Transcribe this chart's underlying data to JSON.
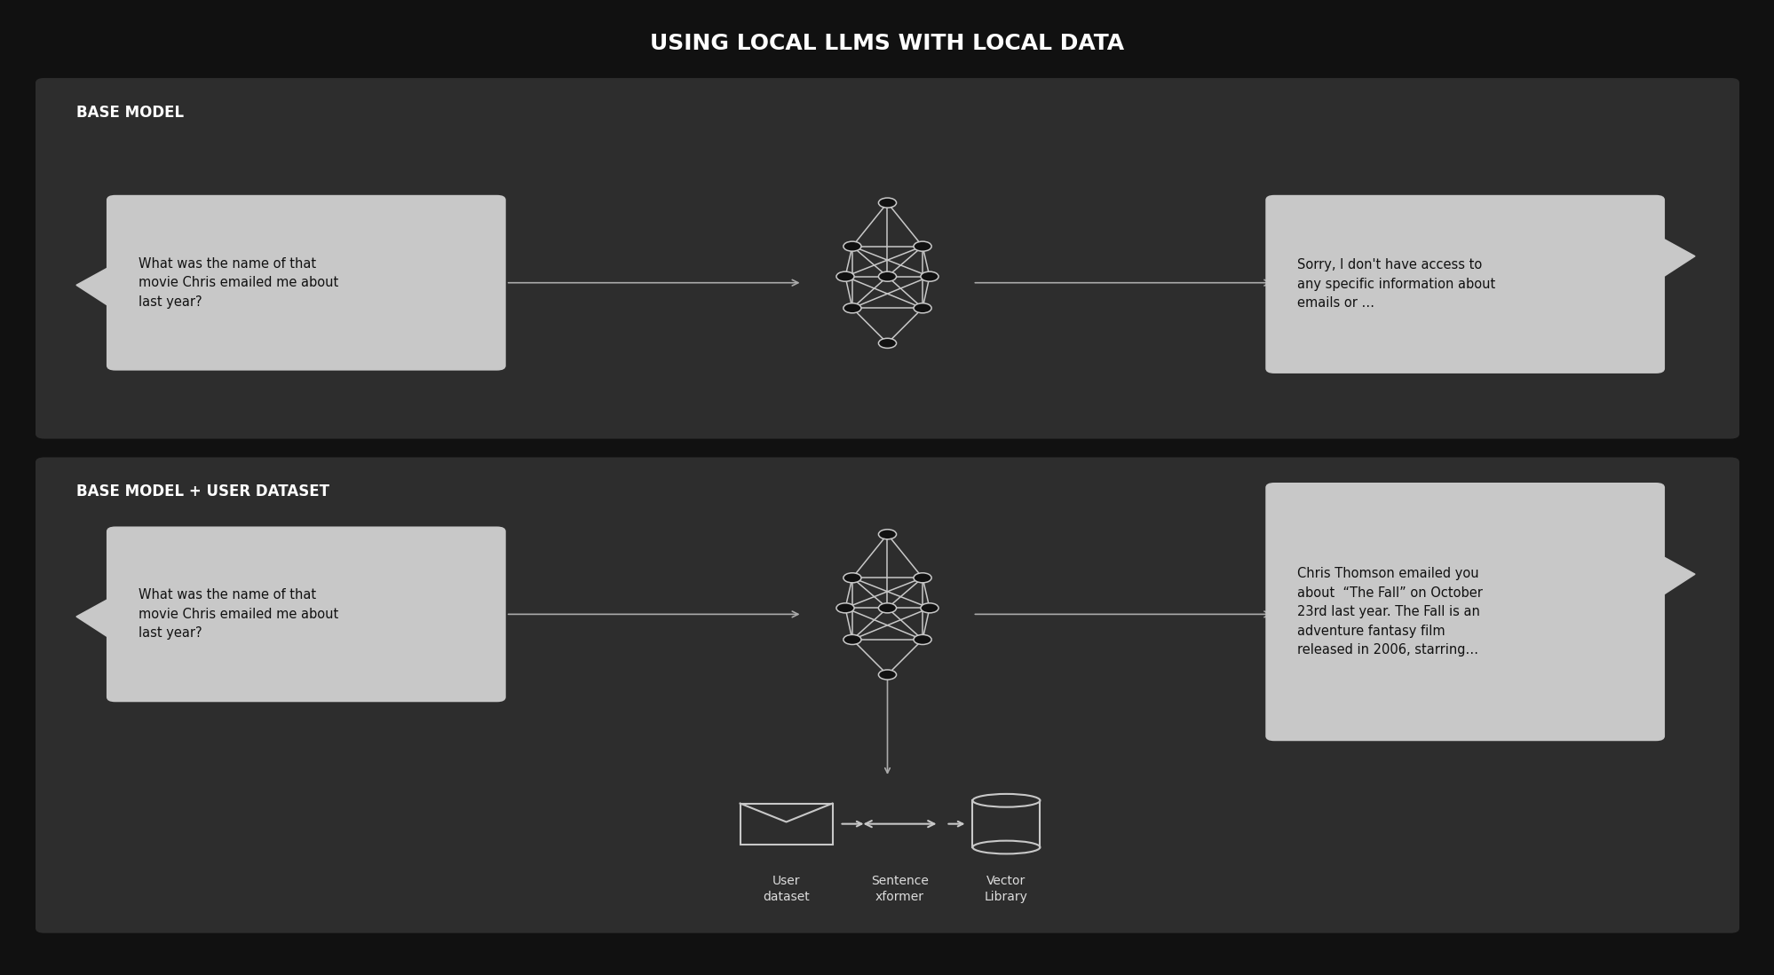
{
  "title": "USING LOCAL LLMS WITH LOCAL DATA",
  "title_color": "#ffffff",
  "title_fontsize": 18,
  "bg_color": "#111111",
  "panel_color": "#2d2d2d",
  "panel1_label": "BASE MODEL",
  "panel2_label": "BASE MODEL + USER DATASET",
  "panel_label_color": "#ffffff",
  "panel_label_fontsize": 12,
  "question_text": "What was the name of that\nmovie Chris emailed me about\nlast year?",
  "answer1_text": "Sorry, I don't have access to\nany specific information about\nemails or …",
  "answer2_text": "Chris Thomson emailed you\nabout  “The Fall” on October\n23rd last year. The Fall is an\nadventure fantasy film\nreleased in 2006, starring…",
  "bubble_color": "#c8c8c8",
  "bubble_text_color": "#111111",
  "arrow_color": "#aaaaaa",
  "nn_color": "#c8c8c8",
  "icon_color": "#c8c8c8",
  "label_color": "#dddddd",
  "label_fontsize": 10
}
